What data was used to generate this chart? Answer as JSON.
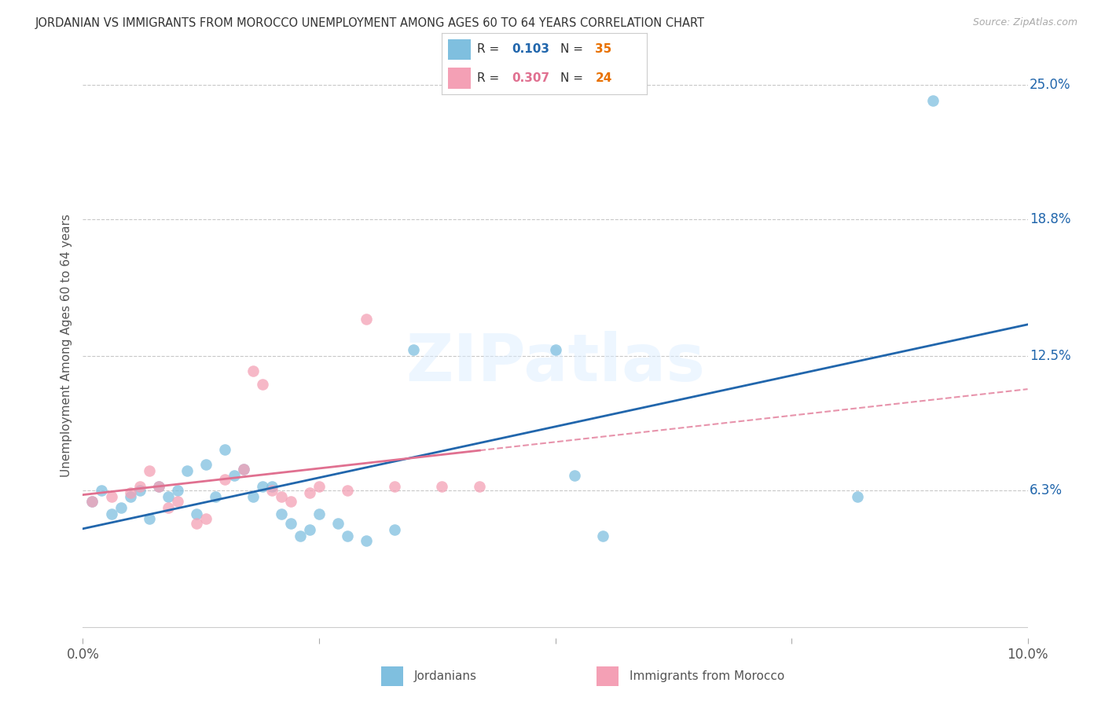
{
  "title": "JORDANIAN VS IMMIGRANTS FROM MOROCCO UNEMPLOYMENT AMONG AGES 60 TO 64 YEARS CORRELATION CHART",
  "source": "Source: ZipAtlas.com",
  "ylabel": "Unemployment Among Ages 60 to 64 years",
  "xlim": [
    0.0,
    0.1
  ],
  "ylim": [
    -0.005,
    0.265
  ],
  "plot_ylim": [
    0.0,
    0.25
  ],
  "jordanians_R": "0.103",
  "jordanians_N": "35",
  "morocco_R": "0.307",
  "morocco_N": "24",
  "jordanian_color": "#7fbfdf",
  "morocco_color": "#f4a0b5",
  "jordanian_line_color": "#2166ac",
  "morocco_line_color": "#e07090",
  "n_color": "#e87000",
  "background_color": "#ffffff",
  "grid_color": "#c8c8c8",
  "ytick_values": [
    0.063,
    0.125,
    0.188,
    0.25
  ],
  "ytick_labels": [
    "6.3%",
    "12.5%",
    "18.8%",
    "25.0%"
  ],
  "jordanians_x": [
    0.001,
    0.002,
    0.003,
    0.004,
    0.005,
    0.006,
    0.007,
    0.008,
    0.009,
    0.01,
    0.011,
    0.012,
    0.013,
    0.014,
    0.015,
    0.016,
    0.017,
    0.018,
    0.019,
    0.02,
    0.021,
    0.022,
    0.023,
    0.024,
    0.025,
    0.027,
    0.028,
    0.03,
    0.033,
    0.035,
    0.05,
    0.052,
    0.055,
    0.082,
    0.09
  ],
  "jordanians_y": [
    0.058,
    0.063,
    0.052,
    0.055,
    0.06,
    0.063,
    0.05,
    0.065,
    0.06,
    0.063,
    0.072,
    0.052,
    0.075,
    0.06,
    0.082,
    0.07,
    0.073,
    0.06,
    0.065,
    0.065,
    0.052,
    0.048,
    0.042,
    0.045,
    0.052,
    0.048,
    0.042,
    0.04,
    0.045,
    0.128,
    0.128,
    0.07,
    0.042,
    0.06,
    0.243
  ],
  "morocco_x": [
    0.001,
    0.003,
    0.005,
    0.006,
    0.007,
    0.008,
    0.009,
    0.01,
    0.012,
    0.013,
    0.015,
    0.017,
    0.018,
    0.019,
    0.02,
    0.021,
    0.022,
    0.024,
    0.025,
    0.028,
    0.03,
    0.033,
    0.038,
    0.042
  ],
  "morocco_y": [
    0.058,
    0.06,
    0.062,
    0.065,
    0.072,
    0.065,
    0.055,
    0.058,
    0.048,
    0.05,
    0.068,
    0.073,
    0.118,
    0.112,
    0.063,
    0.06,
    0.058,
    0.062,
    0.065,
    0.063,
    0.142,
    0.065,
    0.065,
    0.065
  ]
}
